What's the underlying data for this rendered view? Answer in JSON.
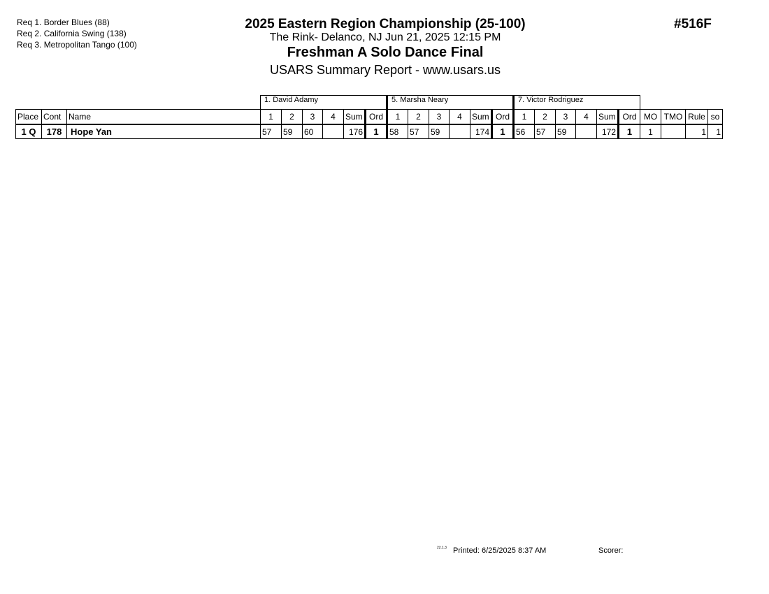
{
  "header": {
    "requirements": [
      "Req  1.  Border Blues (88)",
      "Req  2.  California Swing (138)",
      "Req  3.  Metropolitan Tango (100)"
    ],
    "title": "2025 Eastern Region Championship (25-100)",
    "venue": "The Rink- Delanco, NJ  Jun 21, 2025  12:15 PM",
    "event": "Freshman A Solo Dance Final",
    "report": "USARS Summary Report - www.usars.us",
    "event_number": "#516F"
  },
  "table": {
    "judges": [
      "1.  David Adamy",
      "5.  Marsha Neary",
      "7.  Victor Rodriguez"
    ],
    "columns": {
      "place": "Place",
      "cont": "Cont",
      "name": "Name",
      "d1": "1",
      "d2": "2",
      "d3": "3",
      "d4": "4",
      "sum": "Sum",
      "ord": "Ord",
      "mo": "MO",
      "tmo": "TMO",
      "rule": "Rule",
      "so": "so"
    },
    "rows": [
      {
        "place": "1 Q",
        "cont": "178",
        "name": "Hope Yan",
        "judges": [
          {
            "s1": "57",
            "s2": "59",
            "s3": "60",
            "s4": "",
            "sum": "176",
            "ord": "1"
          },
          {
            "s1": "58",
            "s2": "57",
            "s3": "59",
            "s4": "",
            "sum": "174",
            "ord": "1"
          },
          {
            "s1": "56",
            "s2": "57",
            "s3": "59",
            "s4": "",
            "sum": "172",
            "ord": "1"
          }
        ],
        "mo": "1",
        "tmo": "",
        "rule": "1",
        "so": "1"
      }
    ]
  },
  "footer": {
    "version": "22.1.3",
    "printed": "Printed:  6/25/2025  8:37 AM",
    "scorer": "Scorer:"
  }
}
